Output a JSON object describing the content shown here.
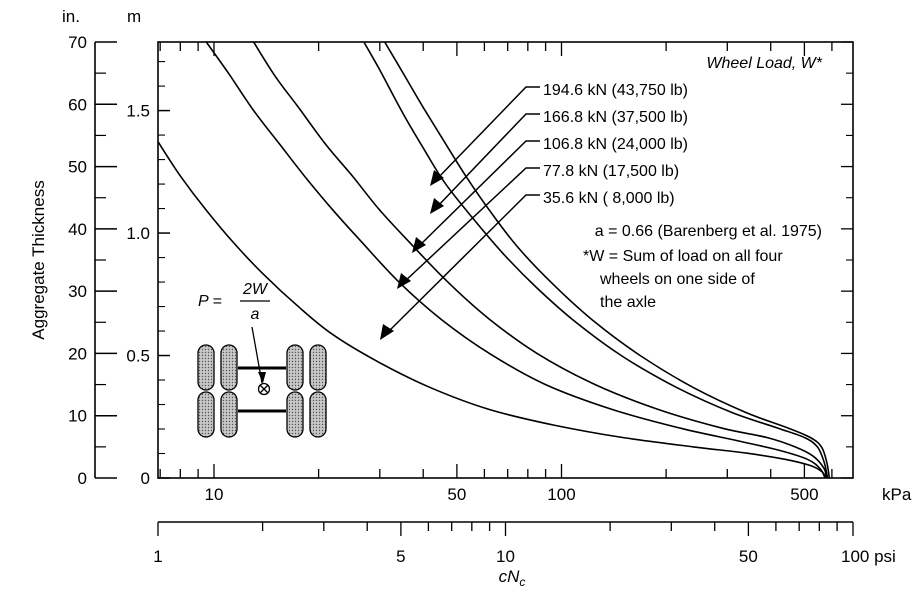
{
  "chart_data": {
    "type": "line",
    "xscale": "log",
    "x_units_primary": "kPa",
    "x_units_secondary": "psi",
    "xlim_kPa": [
      6.9,
      690
    ],
    "xlim_psi": [
      1,
      100
    ],
    "ylim_in": [
      0,
      70
    ],
    "ylim_m": [
      0,
      1.78
    ],
    "x_ticks_kPa": [
      "10",
      "50",
      "100",
      "500"
    ],
    "x_ticks_psi": [
      "1",
      "5",
      "10",
      "50",
      "100 psi"
    ],
    "y_ticks_in": [
      "0",
      "10",
      "20",
      "30",
      "40",
      "50",
      "60",
      "70"
    ],
    "y_ticks_m": [
      "0",
      "0.5",
      "1.0",
      "1.5"
    ],
    "y_unit_in": "in.",
    "y_unit_m": "m",
    "x_unit_kPa": "kPa",
    "ylabel": "Aggregate Thickness",
    "xlabel": "cN",
    "xlabel_subscript": "c",
    "grid": false,
    "legend": {
      "title": "Wheel Load, W*",
      "entries": [
        "194.6 kN (43,750 lb)",
        "166.8 kN (37,500 lb)",
        "106.8 kN (24,000 lb)",
        "77.8 kN (17,500 lb)",
        "35.6 kN ( 8,000 lb)"
      ],
      "note1": "a = 0.66 (Barenberg et al. 1975)",
      "note2_lines": [
        "*W = Sum of load on all four",
        "wheels on one side of",
        "the axle"
      ]
    },
    "formula": {
      "lhs": "P = ",
      "numerator": "2W",
      "denominator": "a"
    },
    "series": [
      {
        "name": "194.6 kN (43,750 lb)",
        "x_kPa": [
          31,
          35,
          40,
          46,
          53,
          62,
          75,
          95,
          125,
          170,
          240,
          340,
          450,
          520,
          560,
          580,
          590
        ],
        "y_in": [
          70,
          65,
          59.5,
          54,
          48.5,
          43,
          37,
          31,
          25,
          19.5,
          14.5,
          10.5,
          8,
          6.5,
          5,
          2.5,
          0
        ]
      },
      {
        "name": "166.8 kN (37,500 lb)",
        "x_kPa": [
          27,
          30,
          35,
          40,
          46,
          55,
          68,
          85,
          110,
          150,
          215,
          310,
          420,
          500,
          545,
          570,
          583
        ],
        "y_in": [
          70,
          65.5,
          58.5,
          53,
          47.5,
          42,
          36,
          30.5,
          25,
          19.5,
          14.5,
          10.5,
          8,
          6.5,
          5,
          2.5,
          0
        ]
      },
      {
        "name": "106.8 kN (24,000 lb)",
        "x_kPa": [
          13,
          15,
          17.5,
          21,
          25,
          30,
          37,
          47,
          62,
          85,
          125,
          190,
          290,
          390,
          470,
          530,
          570,
          578
        ],
        "y_in": [
          70,
          64.5,
          59.5,
          53.5,
          48.5,
          43,
          37.5,
          31.5,
          25.5,
          20,
          15,
          11,
          8,
          6.5,
          5,
          3.5,
          1.5,
          0
        ]
      },
      {
        "name": "77.8 kN (17,500 lb)",
        "x_kPa": [
          9.5,
          11,
          13,
          15.5,
          18.5,
          22,
          27,
          34,
          45,
          62,
          90,
          140,
          220,
          320,
          420,
          510,
          555,
          573
        ],
        "y_in": [
          70,
          65,
          59,
          53.5,
          48,
          43,
          37.5,
          31.5,
          25.5,
          20,
          15,
          11,
          8,
          6,
          4.5,
          3,
          1.5,
          0
        ]
      },
      {
        "name": "35.6 kN ( 8,000 lb)",
        "x_kPa": [
          6.9,
          8,
          9.5,
          11.5,
          14,
          17.5,
          22,
          30,
          42,
          62,
          95,
          150,
          240,
          340,
          440,
          520,
          562,
          575
        ],
        "y_in": [
          54,
          48.5,
          43,
          37.5,
          32.5,
          27.5,
          23,
          18.5,
          14.5,
          11,
          8.5,
          6.5,
          5,
          4,
          3,
          2,
          1,
          0
        ]
      }
    ]
  }
}
